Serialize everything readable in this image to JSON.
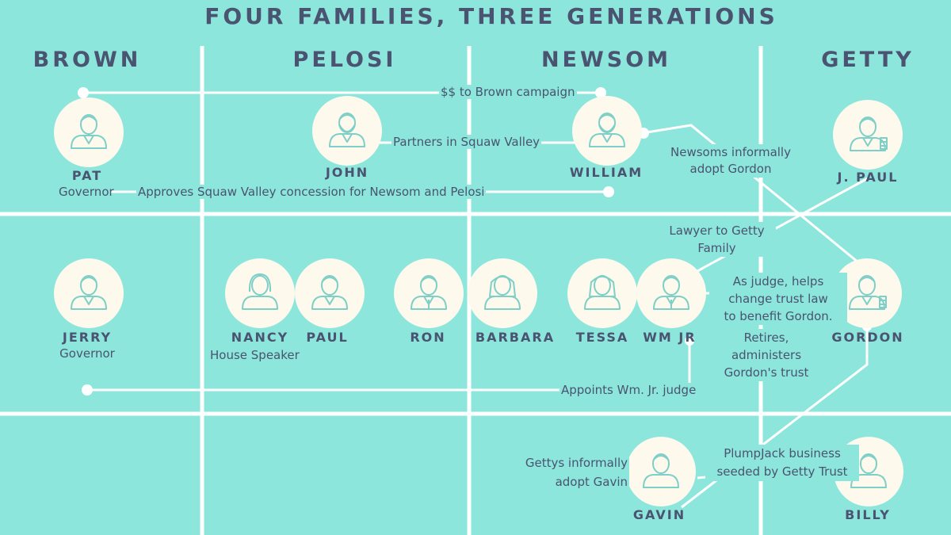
{
  "title": "FOUR FAMILIES, THREE GENERATIONS",
  "families": [
    "BROWN",
    "PELOSI",
    "NEWSOM",
    "GETTY"
  ],
  "people": {
    "pat": {
      "name": "PAT",
      "role": "Governor",
      "icon": "man-suit-icon"
    },
    "john": {
      "name": "JOHN",
      "icon": "man-bearded-icon"
    },
    "william": {
      "name": "WILLIAM",
      "icon": "man-bearded-icon"
    },
    "jpaul": {
      "name": "J. PAUL",
      "icon": "businessman-money-icon"
    },
    "jerry": {
      "name": "JERRY",
      "role": "Governor",
      "icon": "man-suit-icon"
    },
    "nancy": {
      "name": "NANCY",
      "role": "House Speaker",
      "icon": "woman-icon"
    },
    "paul": {
      "name": "PAUL",
      "icon": "man-suit-icon"
    },
    "ron": {
      "name": "RON",
      "icon": "man-tie-icon"
    },
    "barbara": {
      "name": "BARBARA",
      "icon": "woman-long-hair-icon"
    },
    "tessa": {
      "name": "TESSA",
      "icon": "woman-long-hair-icon"
    },
    "wmjr": {
      "name": "WM JR",
      "icon": "man-tie-icon"
    },
    "gordon": {
      "name": "GORDON",
      "icon": "businessman-money-icon"
    },
    "gavin": {
      "name": "GAVIN",
      "icon": "man-icon"
    },
    "billy": {
      "name": "BILLY",
      "icon": "man-icon"
    }
  },
  "annotations": {
    "brown_campaign": "$$ to Brown campaign",
    "squaw_partners": "Partners in Squaw Valley",
    "squaw_concession": "Approves Squaw Valley concession for Newsom and Pelosi",
    "adopt_gordon": [
      "Newsoms informally",
      "adopt Gordon"
    ],
    "lawyer_getty": [
      "Lawyer to Getty",
      "Family"
    ],
    "judge_helps": [
      "As judge, helps",
      "change trust law",
      "to benefit Gordon."
    ],
    "retires": [
      "Retires,",
      "administers",
      "Gordon's trust"
    ],
    "appoints_judge": "Appoints Wm. Jr. judge",
    "adopt_gavin": [
      "Gettys informally",
      "adopt Gavin"
    ],
    "plumpjack": [
      "PlumpJack business",
      "seeded by Getty Trust"
    ]
  },
  "colors": {
    "background": "#8ce6dc",
    "circle": "#fdf9ec",
    "line": "#ffffff",
    "icon": "#7ecfc8",
    "text": "#4a5370"
  }
}
